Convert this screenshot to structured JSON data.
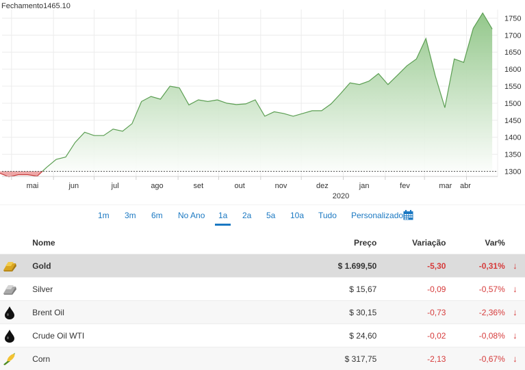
{
  "chart_data": {
    "type": "area",
    "title": "Fechamento1465.10",
    "xlabel": "2020",
    "ylabel": "",
    "ylim": [
      1285,
      1775
    ],
    "yticks": [
      1300,
      1350,
      1400,
      1450,
      1500,
      1550,
      1600,
      1650,
      1700,
      1750
    ],
    "xticks": [
      "mai",
      "jun",
      "jul",
      "ago",
      "set",
      "out",
      "nov",
      "dez",
      "jan",
      "fev",
      "mar",
      "abr"
    ],
    "baseline": 1300,
    "x": [
      "2019-04-22",
      "2019-04-29",
      "2019-05-06",
      "2019-05-13",
      "2019-05-20",
      "2019-05-27",
      "2019-06-03",
      "2019-06-10",
      "2019-06-17",
      "2019-06-24",
      "2019-07-01",
      "2019-07-08",
      "2019-07-15",
      "2019-07-22",
      "2019-07-29",
      "2019-08-05",
      "2019-08-12",
      "2019-08-19",
      "2019-08-26",
      "2019-09-02",
      "2019-09-09",
      "2019-09-16",
      "2019-09-23",
      "2019-09-30",
      "2019-10-07",
      "2019-10-14",
      "2019-10-21",
      "2019-10-28",
      "2019-11-04",
      "2019-11-11",
      "2019-11-18",
      "2019-11-25",
      "2019-12-02",
      "2019-12-09",
      "2019-12-16",
      "2019-12-23",
      "2019-12-30",
      "2020-01-06",
      "2020-01-13",
      "2020-01-20",
      "2020-01-27",
      "2020-02-03",
      "2020-02-10",
      "2020-02-17",
      "2020-02-24",
      "2020-03-02",
      "2020-03-09",
      "2020-03-16",
      "2020-03-23",
      "2020-03-30",
      "2020-04-06",
      "2020-04-13",
      "2020-04-20"
    ],
    "series": [
      {
        "values": [
          1295,
          1284,
          1290,
          1290,
          1286,
          1312,
          1335,
          1342,
          1385,
          1415,
          1405,
          1405,
          1424,
          1418,
          1440,
          1505,
          1520,
          1512,
          1550,
          1545,
          1495,
          1510,
          1505,
          1510,
          1500,
          1496,
          1498,
          1510,
          1462,
          1475,
          1470,
          1462,
          1470,
          1478,
          1478,
          1498,
          1528,
          1560,
          1555,
          1565,
          1587,
          1555,
          1582,
          1610,
          1630,
          1690,
          1580,
          1487,
          1630,
          1620,
          1720,
          1765,
          1718
        ]
      }
    ],
    "colors": {
      "line": "#5b9e52",
      "fill_top": "#8dc484",
      "fill_bottom": "#ffffff",
      "below": "#e06060"
    }
  },
  "ranges": [
    {
      "label": "1m",
      "active": false
    },
    {
      "label": "3m",
      "active": false
    },
    {
      "label": "6m",
      "active": false
    },
    {
      "label": "No Ano",
      "active": false
    },
    {
      "label": "1a",
      "active": true
    },
    {
      "label": "2a",
      "active": false
    },
    {
      "label": "5a",
      "active": false
    },
    {
      "label": "10a",
      "active": false
    },
    {
      "label": "Tudo",
      "active": false
    },
    {
      "label": "Personalizado",
      "active": false
    }
  ],
  "table": {
    "headers": {
      "name": "Nome",
      "price": "Preço",
      "change": "Variação",
      "pct": "Var%"
    },
    "rows": [
      {
        "icon": "gold-bar-icon",
        "name": "Gold",
        "price": "$ 1.699,50",
        "change": "-5,30",
        "pct": "-0,31%",
        "highlight": true
      },
      {
        "icon": "silver-bar-icon",
        "name": "Silver",
        "price": "$ 15,67",
        "change": "-0,09",
        "pct": "-0,57%",
        "highlight": false
      },
      {
        "icon": "oil-drop-icon",
        "name": "Brent Oil",
        "price": "$ 30,15",
        "change": "-0,73",
        "pct": "-2,36%",
        "highlight": false
      },
      {
        "icon": "oil-drop-icon",
        "name": "Crude Oil WTI",
        "price": "$ 24,60",
        "change": "-0,02",
        "pct": "-0,08%",
        "highlight": false
      },
      {
        "icon": "corn-icon",
        "name": "Corn",
        "price": "$ 317,75",
        "change": "-2,13",
        "pct": "-0,67%",
        "highlight": false
      }
    ]
  }
}
